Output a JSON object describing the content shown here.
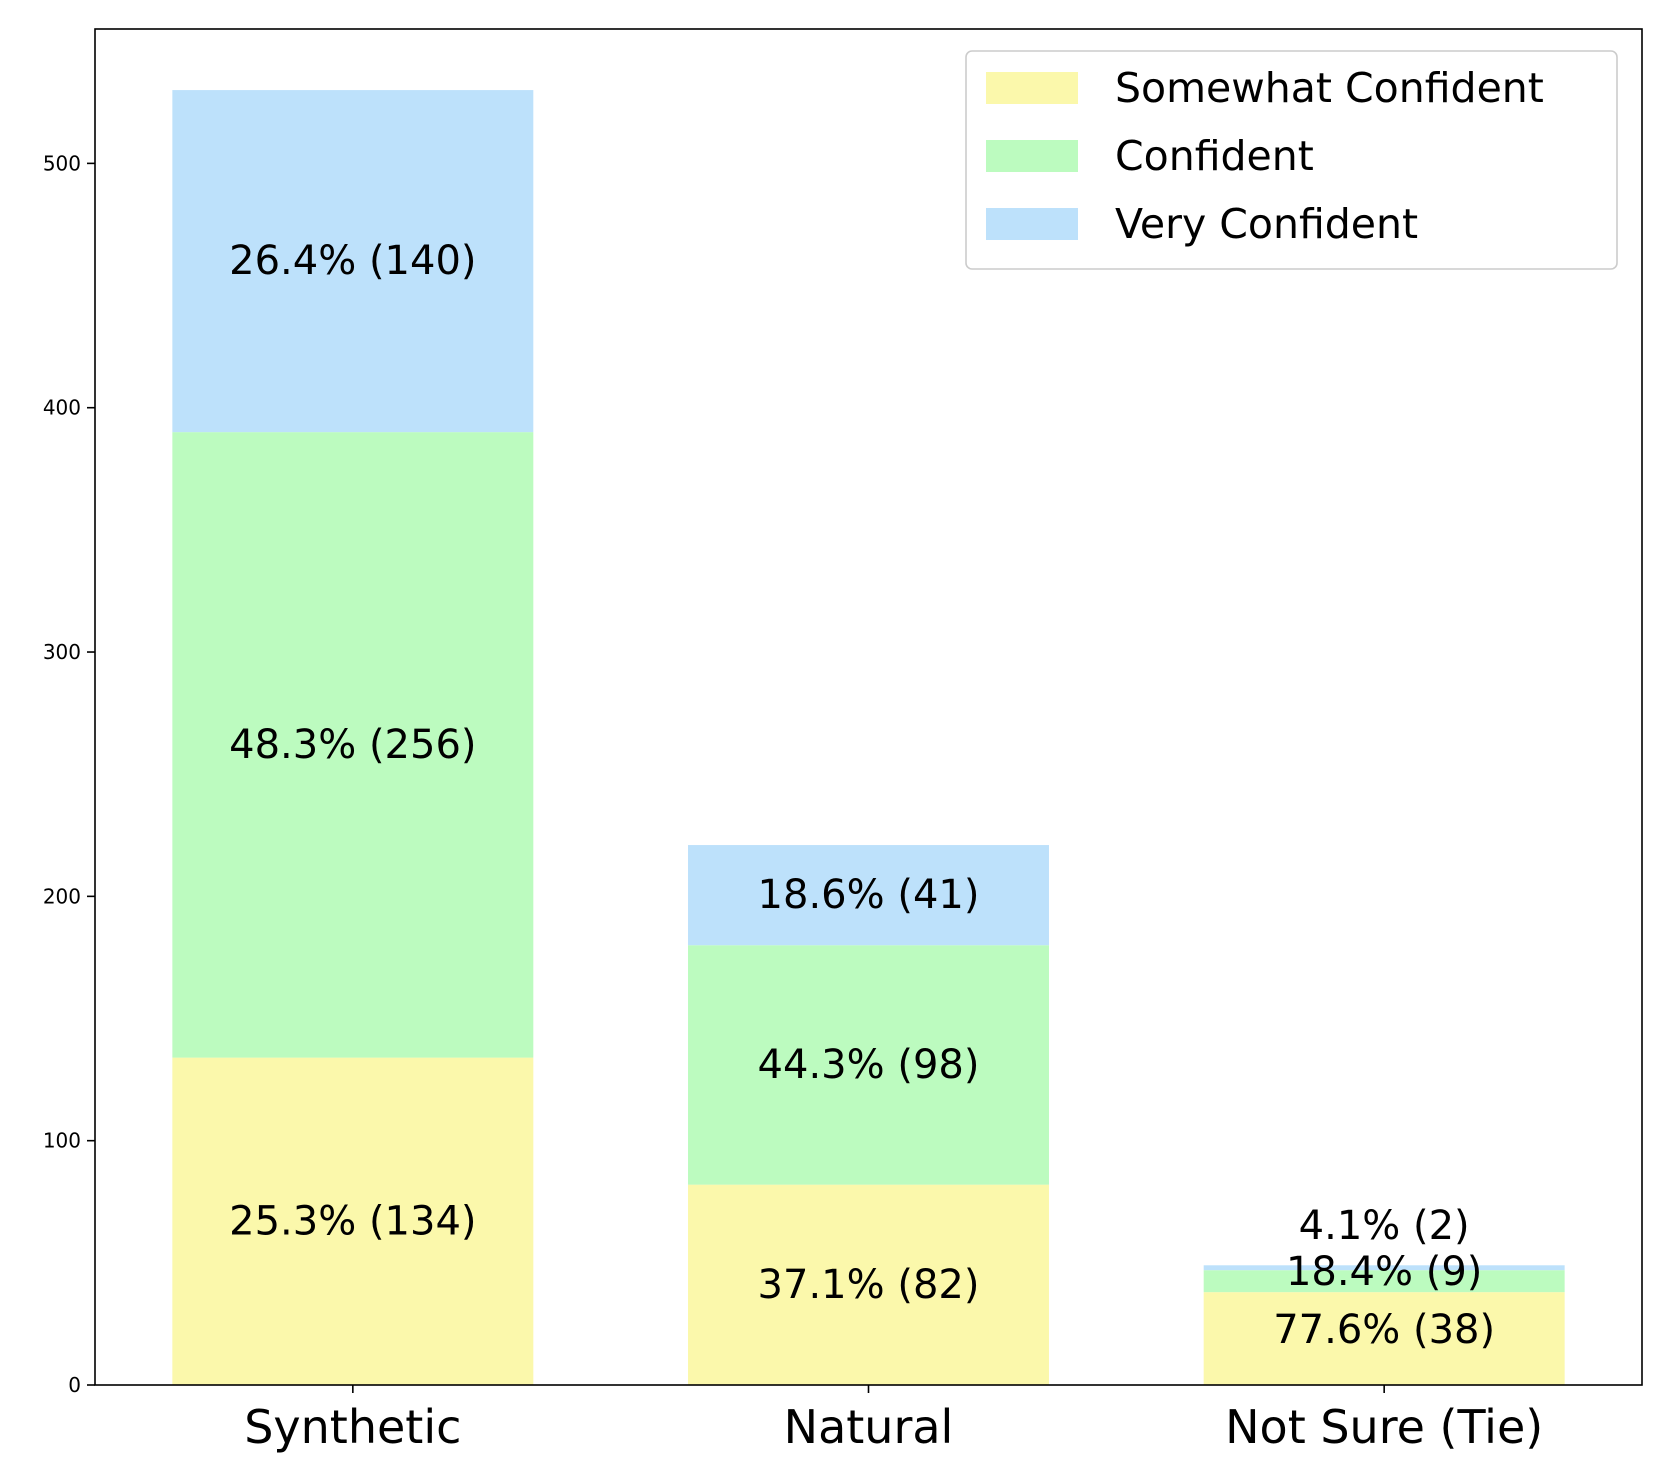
{
  "chart_data": {
    "type": "bar",
    "stacked": true,
    "title": "",
    "xlabel": "",
    "ylabel": "",
    "categories": [
      "Synthetic",
      "Natural",
      "Not Sure (Tie)"
    ],
    "ylim": [
      0,
      555
    ],
    "yticks": [
      0,
      100,
      200,
      300,
      400,
      500
    ],
    "grid": false,
    "legend_position": "top-right",
    "series": [
      {
        "name": "Somewhat Confident",
        "color": "#fbf8ab",
        "values": [
          134,
          82,
          38
        ],
        "labels": [
          "25.3% (134)",
          "37.1% (82)",
          "77.6% (38)"
        ]
      },
      {
        "name": "Confident",
        "color": "#bcfbbf",
        "values": [
          256,
          98,
          9
        ],
        "labels": [
          "48.3% (256)",
          "44.3% (98)",
          "18.4% (9)"
        ]
      },
      {
        "name": "Very Confident",
        "color": "#bde1fb",
        "values": [
          140,
          41,
          2
        ],
        "labels": [
          "26.4% (140)",
          "18.6% (41)",
          "4.1% (2)"
        ]
      }
    ]
  }
}
